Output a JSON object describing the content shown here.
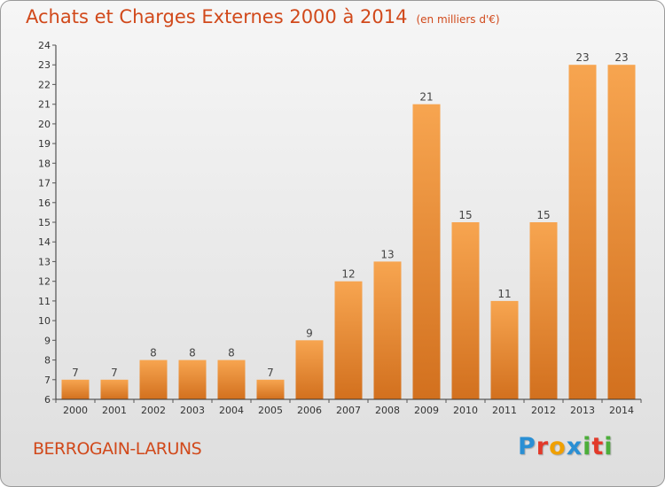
{
  "header": {
    "title": "Achats et Charges Externes 2000 à 2014",
    "subtitle": "(en milliers d'€)"
  },
  "footer": {
    "commune": "BERROGAIN-LARUNS",
    "brand_letters": [
      "P",
      "r",
      "o",
      "x",
      "i",
      "t",
      "i"
    ],
    "brand_colors": [
      "#2a8fd4",
      "#e23a2a",
      "#f0a000",
      "#2a8fd4",
      "#4cae3a",
      "#e23a2a",
      "#4cae3a"
    ]
  },
  "colors": {
    "bar_light": "#f7a550",
    "bar_dark": "#d2701e",
    "title": "#d1491b",
    "axis": "#333333",
    "grid_tick": "#555555"
  },
  "chart_data": {
    "type": "bar",
    "title": "Achats et Charges Externes 2000 à 2014",
    "subtitle": "(en milliers d'€)",
    "categories": [
      "2000",
      "2001",
      "2002",
      "2003",
      "2004",
      "2005",
      "2006",
      "2007",
      "2008",
      "2009",
      "2010",
      "2011",
      "2012",
      "2013",
      "2014"
    ],
    "values": [
      7,
      7,
      8,
      8,
      8,
      7,
      9,
      12,
      13,
      21,
      15,
      11,
      15,
      23,
      23
    ],
    "data_labels": [
      "7",
      "7",
      "8",
      "8",
      "8",
      "7",
      "9",
      "12",
      "13",
      "21",
      "15",
      "11",
      "15",
      "23",
      "23"
    ],
    "ylim": [
      6,
      24
    ],
    "yticks": [
      6,
      7,
      8,
      9,
      10,
      11,
      12,
      13,
      14,
      15,
      16,
      17,
      18,
      19,
      20,
      21,
      22,
      23,
      24
    ],
    "ytick_labels": [
      "6",
      "7",
      "8",
      "9",
      "10",
      "11",
      "12",
      "13",
      "14",
      "15",
      "16",
      "17",
      "18",
      "19",
      "20",
      "21",
      "22",
      "23",
      "24"
    ],
    "xlabel": "",
    "ylabel": "",
    "grid": false,
    "legend": "none"
  }
}
